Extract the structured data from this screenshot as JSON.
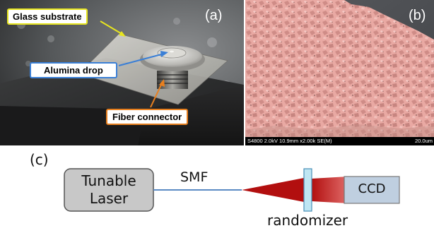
{
  "panel_a": {
    "label": "(a)",
    "callouts": {
      "glass_substrate": "Glass substrate",
      "alumina_drop": "Alumina drop",
      "fiber_connector": "Fiber connector"
    },
    "colors": {
      "glass": "#e7e51f",
      "alumina": "#3a7fd6",
      "fiber": "#e8801f"
    }
  },
  "panel_b": {
    "label": "(b)",
    "sem_info": "S4800 2.0kV 10.9mm x2.00k SE(M)",
    "scale": "20.0um",
    "colors": {
      "particles": "#e9a9a3",
      "background": "#4b4d52"
    }
  },
  "panel_c": {
    "label": "(c)",
    "laser": [
      "Tunable",
      "Laser"
    ],
    "fiber": "SMF",
    "randomizer": "randomizer",
    "detector": "CCD",
    "colors": {
      "box_fill": "#c8c8c8",
      "detector_fill": "#bfcfe0",
      "fiber": "#5b8ac4",
      "beam": "#b20f0f",
      "randomizer_fill": "#bfe6f3"
    }
  }
}
